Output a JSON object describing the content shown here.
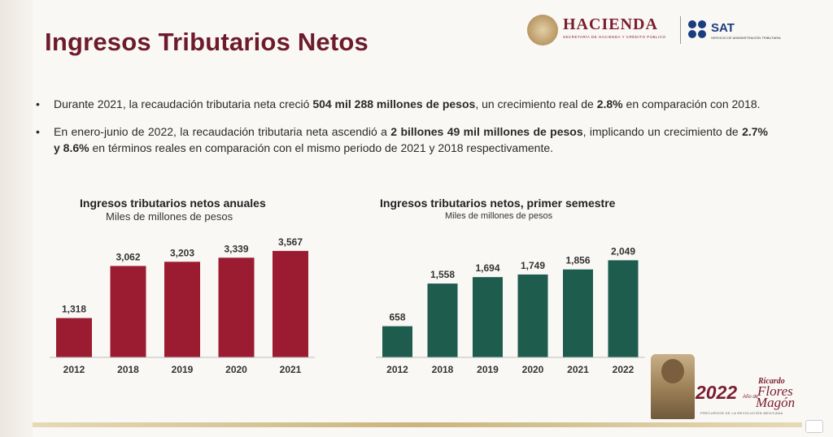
{
  "header": {
    "title": "Ingresos Tributarios Netos",
    "hacienda_name": "HACIENDA",
    "hacienda_sub": "SECRETARÍA DE HACIENDA Y CRÉDITO PÚBLICO",
    "sat_name": "SAT",
    "sat_sub": "SERVICIO DE ADMINISTRACIÓN TRIBUTARIA"
  },
  "bullets": [
    {
      "t1": "Durante 2021, la recaudación tributaria neta creció ",
      "b1": "504 mil 288 millones de pesos",
      "t2": ", un crecimiento real de ",
      "b2": "2.8%",
      "t3": " en comparación con 2018."
    },
    {
      "t1": "En enero-junio de 2022, la recaudación tributaria neta ascendió a ",
      "b1": "2 billones 49 mil millones de pesos",
      "t2": ", implicando un crecimiento de ",
      "b2": "2.7% y 8.6%",
      "t3": " en términos reales en comparación con el mismo periodo de 2021 y 2018 respectivamente."
    }
  ],
  "chart_data": [
    {
      "type": "bar",
      "title": "Ingresos tributarios netos anuales",
      "subtitle": "Miles de millones de pesos",
      "categories": [
        "2012",
        "2018",
        "2019",
        "2020",
        "2021"
      ],
      "values": [
        1318,
        3062,
        3203,
        3339,
        3567
      ],
      "value_labels": [
        "1,318",
        "3,062",
        "3,203",
        "3,339",
        "3,567"
      ],
      "color": "#9b1c31",
      "ylim": [
        0,
        3700
      ],
      "grid": false,
      "legend": "none"
    },
    {
      "type": "bar",
      "title": "Ingresos tributarios netos, primer semestre",
      "subtitle": "Miles de millones de pesos",
      "categories": [
        "2012",
        "2018",
        "2019",
        "2020",
        "2021",
        "2022"
      ],
      "values": [
        658,
        1558,
        1694,
        1749,
        1856,
        2049
      ],
      "value_labels": [
        "658",
        "1,558",
        "1,694",
        "1,749",
        "1,856",
        "2,049"
      ],
      "color": "#1e5c4e",
      "ylim": [
        0,
        2125
      ],
      "grid": false,
      "legend": "none"
    }
  ],
  "footer": {
    "year": "2022",
    "ricardo": "Ricardo",
    "flores": "Flores",
    "ano_de": "Año de",
    "magon": "Magón",
    "precursor": "PRECURSOR DE LA REVOLUCIÓN MEXICANA"
  }
}
